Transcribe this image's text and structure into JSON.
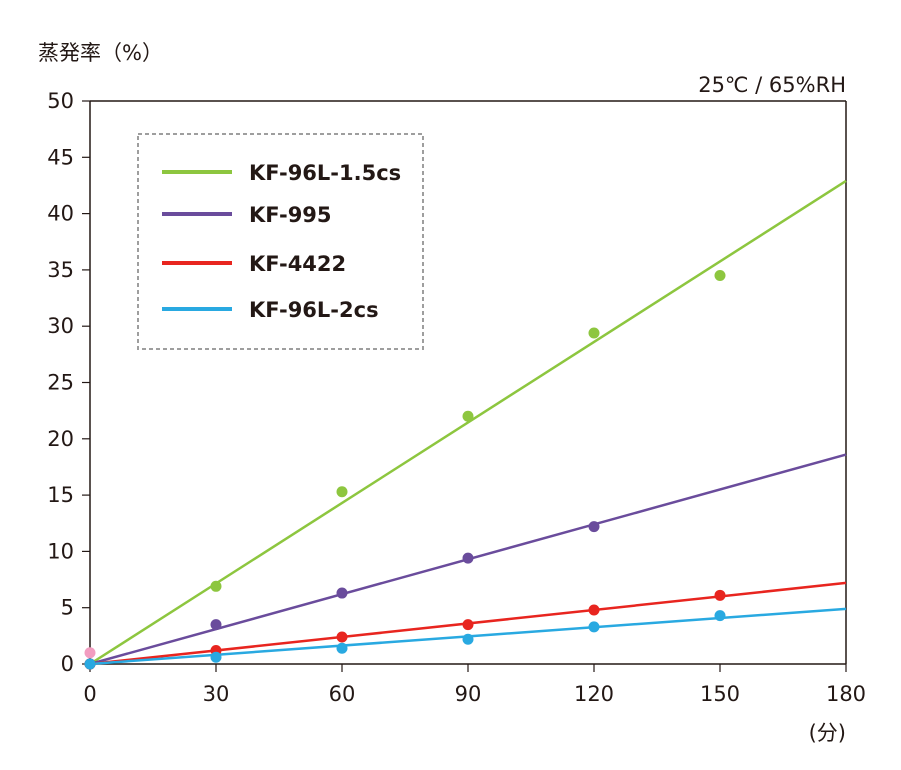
{
  "chart_data": {
    "type": "scatter",
    "ylabel": "蒸発率（%）",
    "xlabel": "(分)",
    "condition": "25℃ / 65%RH",
    "xlim": [
      0,
      180
    ],
    "ylim": [
      0,
      50
    ],
    "x_ticks": [
      "0",
      "30",
      "60",
      "90",
      "120",
      "150",
      "180"
    ],
    "y_ticks": [
      "0",
      "5",
      "10",
      "15",
      "20",
      "25",
      "30",
      "35",
      "40",
      "45",
      "50"
    ],
    "legend_placement": "top-left",
    "series": [
      {
        "name": "KF-96L-1.5cs",
        "color": "#8dc63f",
        "x": [
          0,
          30,
          60,
          90,
          120,
          150
        ],
        "y": [
          0,
          6.9,
          15.3,
          22.0,
          29.4,
          34.5
        ],
        "trend": [
          0,
          0,
          180,
          42.9
        ]
      },
      {
        "name": "KF-995",
        "color": "#6a4c9c",
        "x": [
          0,
          30,
          60,
          90,
          120
        ],
        "y": [
          0,
          3.5,
          6.3,
          9.4,
          12.2
        ],
        "trend": [
          0,
          0,
          180,
          18.6
        ]
      },
      {
        "name": "KF-4422",
        "color": "#e8251f",
        "x": [
          0,
          30,
          60,
          90,
          120,
          150
        ],
        "y": [
          0,
          1.2,
          2.4,
          3.5,
          4.8,
          6.1
        ],
        "trend": [
          0,
          0,
          180,
          7.2
        ]
      },
      {
        "name": "KF-96L-2cs",
        "color": "#29a9e1",
        "x": [
          0,
          30,
          60,
          90,
          120,
          150
        ],
        "y": [
          0,
          0.6,
          1.4,
          2.2,
          3.3,
          4.3
        ],
        "trend": [
          0,
          0,
          180,
          4.9
        ]
      }
    ],
    "extra_points": [
      {
        "x": 0,
        "y": 1.0,
        "color": "#f29cc0"
      }
    ]
  }
}
